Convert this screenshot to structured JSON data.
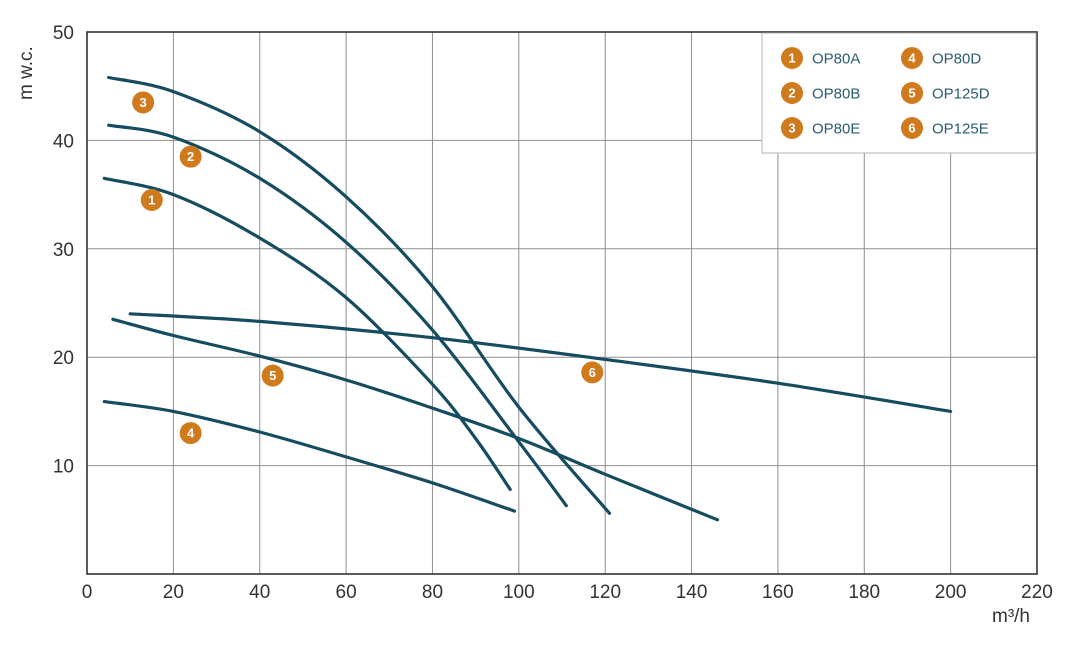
{
  "chart_data": {
    "type": "line",
    "xlabel": "m³/h",
    "ylabel": "m w.c.",
    "xlim": [
      0,
      220
    ],
    "ylim": [
      0,
      50
    ],
    "x_ticks": [
      0,
      20,
      40,
      60,
      80,
      100,
      120,
      140,
      160,
      180,
      200,
      220
    ],
    "y_ticks": [
      10,
      20,
      30,
      40,
      50
    ],
    "grid": true,
    "legend_position": "top-right",
    "colors": {
      "line": "#154c60",
      "badge": "#d07a1e",
      "legend_text": "#2b5c6e"
    },
    "series": [
      {
        "id": "1",
        "name": "OP80A",
        "points": [
          [
            4,
            36.5
          ],
          [
            20,
            35
          ],
          [
            40,
            31
          ],
          [
            60,
            25.5
          ],
          [
            80,
            17.5
          ],
          [
            90,
            12.5
          ],
          [
            98,
            7.8
          ]
        ],
        "label_at": [
          15,
          34.5
        ]
      },
      {
        "id": "2",
        "name": "OP80B",
        "points": [
          [
            5,
            41.4
          ],
          [
            20,
            40.3
          ],
          [
            40,
            36.5
          ],
          [
            60,
            30.6
          ],
          [
            80,
            22.5
          ],
          [
            100,
            12.2
          ],
          [
            111,
            6.3
          ]
        ],
        "label_at": [
          24,
          38.5
        ]
      },
      {
        "id": "3",
        "name": "OP80E",
        "points": [
          [
            5,
            45.8
          ],
          [
            20,
            44.5
          ],
          [
            40,
            40.8
          ],
          [
            60,
            34.8
          ],
          [
            80,
            26.5
          ],
          [
            100,
            15.4
          ],
          [
            121,
            5.6
          ]
        ],
        "label_at": [
          13,
          43.5
        ]
      },
      {
        "id": "4",
        "name": "OP80D",
        "points": [
          [
            4,
            15.9
          ],
          [
            20,
            15
          ],
          [
            40,
            13.1
          ],
          [
            60,
            10.8
          ],
          [
            80,
            8.4
          ],
          [
            99,
            5.8
          ]
        ],
        "label_at": [
          24,
          13
        ]
      },
      {
        "id": "5",
        "name": "OP125D",
        "points": [
          [
            6,
            23.5
          ],
          [
            20,
            22
          ],
          [
            40,
            20.1
          ],
          [
            60,
            17.9
          ],
          [
            80,
            15.3
          ],
          [
            100,
            12.5
          ],
          [
            120,
            9.2
          ],
          [
            146,
            5
          ]
        ],
        "label_at": [
          43,
          18.3
        ]
      },
      {
        "id": "6",
        "name": "OP125E",
        "points": [
          [
            10,
            24
          ],
          [
            40,
            23.3
          ],
          [
            80,
            21.8
          ],
          [
            120,
            19.8
          ],
          [
            160,
            17.6
          ],
          [
            200,
            15
          ]
        ],
        "label_at": [
          117,
          18.6
        ]
      }
    ]
  }
}
